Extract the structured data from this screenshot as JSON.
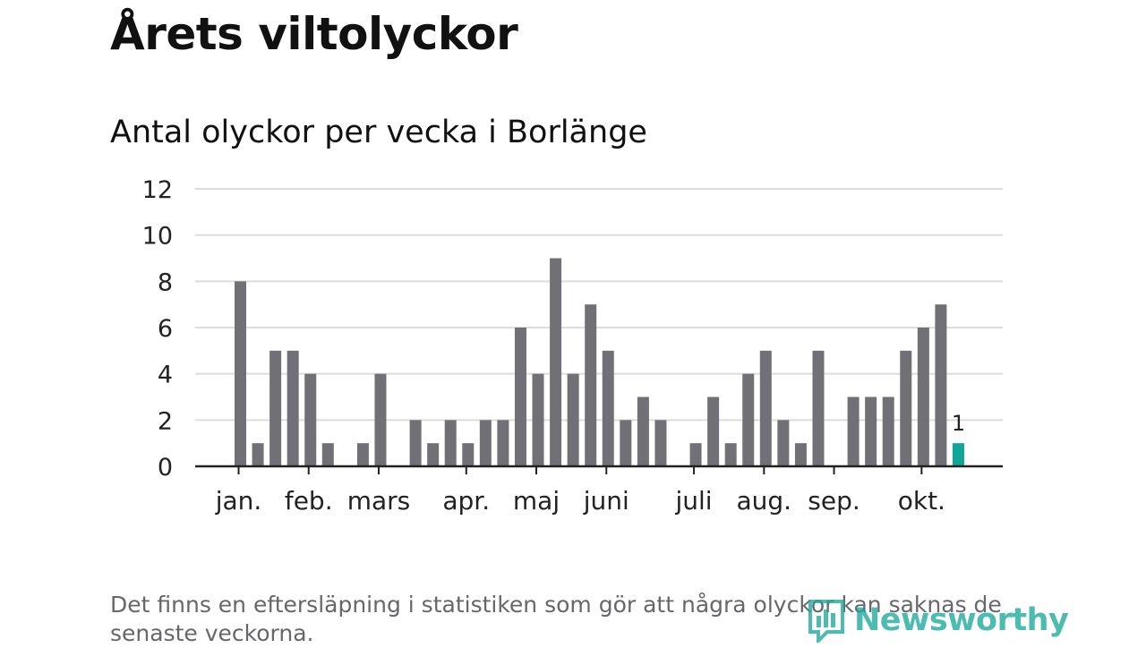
{
  "title": "Årets viltolyckor",
  "subtitle": "Antal olyckor per vecka i Borlänge",
  "footnote": "Det finns en eftersläpning i statistiken som gör att några olyckor kan saknas de senaste veckorna.",
  "logo": {
    "text": "Newsworthy",
    "icon": "bar-chart-logo-icon"
  },
  "colors": {
    "bar": "#717076",
    "highlight": "#10a697",
    "grid": "#dcdcdc",
    "axis": "#222222",
    "logo": "#1aa89b"
  },
  "chart_data": {
    "type": "bar",
    "title": "Antal olyckor per vecka i Borlänge",
    "xlabel": "",
    "ylabel": "",
    "ylim": [
      0,
      12
    ],
    "yticks": [
      0,
      2,
      4,
      6,
      8,
      10,
      12
    ],
    "grid": true,
    "legend": "none",
    "weeks": [
      1,
      2,
      3,
      4,
      5,
      6,
      7,
      8,
      9,
      10,
      11,
      12,
      13,
      14,
      15,
      16,
      17,
      18,
      19,
      20,
      21,
      22,
      23,
      24,
      25,
      26,
      27,
      28,
      29,
      30,
      31,
      32,
      33,
      34,
      35,
      36,
      37,
      38,
      39,
      40,
      41,
      42
    ],
    "values": [
      8,
      1,
      5,
      5,
      4,
      1,
      0,
      1,
      4,
      0,
      2,
      1,
      2,
      1,
      2,
      2,
      6,
      4,
      9,
      4,
      7,
      5,
      2,
      3,
      2,
      0,
      1,
      3,
      1,
      4,
      5,
      2,
      1,
      5,
      0,
      3,
      3,
      3,
      5,
      6,
      7,
      1
    ],
    "highlight_index": 41,
    "highlight_label": "1",
    "month_labels": [
      {
        "label": "jan.",
        "week": 1
      },
      {
        "label": "feb.",
        "week": 5
      },
      {
        "label": "mars",
        "week": 9
      },
      {
        "label": "apr.",
        "week": 14
      },
      {
        "label": "maj",
        "week": 18
      },
      {
        "label": "juni",
        "week": 22
      },
      {
        "label": "juli",
        "week": 27
      },
      {
        "label": "aug.",
        "week": 31
      },
      {
        "label": "sep.",
        "week": 35
      },
      {
        "label": "okt.",
        "week": 40
      }
    ]
  }
}
